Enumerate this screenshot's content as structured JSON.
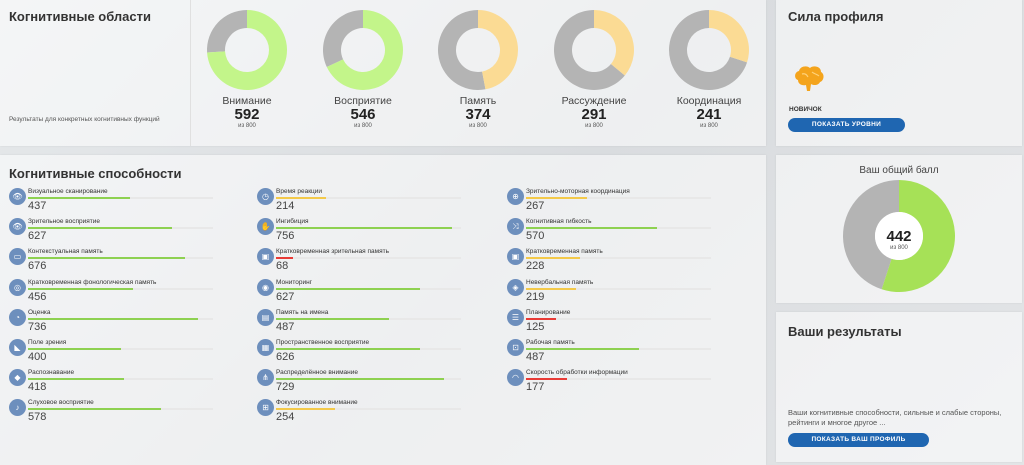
{
  "areas": {
    "title": "Когнитивные области",
    "description": "Результаты для конкретных когнитивных функций",
    "out_of": "из 800",
    "items": [
      {
        "name": "Внимание",
        "score": "592",
        "fraction": 0.74,
        "color": "#c3f58a"
      },
      {
        "name": "Восприятие",
        "score": "546",
        "fraction": 0.68,
        "color": "#c3f58a"
      },
      {
        "name": "Память",
        "score": "374",
        "fraction": 0.47,
        "color": "#fbdb94"
      },
      {
        "name": "Рассуждение",
        "score": "291",
        "fraction": 0.36,
        "color": "#fbdb94"
      },
      {
        "name": "Координация",
        "score": "241",
        "fraction": 0.3,
        "color": "#fbdb94"
      }
    ]
  },
  "profile": {
    "title": "Сила профиля",
    "level": "НОВИЧОК",
    "button": "ПОКАЗАТЬ УРОВНИ",
    "icon": "brain-icon",
    "brain_color": "#f4a41c"
  },
  "abilities": {
    "title": "Когнитивные способности",
    "colors": {
      "green": "#8ed151",
      "yellow": "#f3c94a",
      "red": "#e83b36"
    },
    "columns": [
      [
        {
          "name": "Визуальное сканирование",
          "value": "437",
          "fraction": 0.55,
          "color": "green",
          "icon": "eye-icon",
          "glyph": "👁"
        },
        {
          "name": "Зрительное восприятие",
          "value": "627",
          "fraction": 0.78,
          "color": "green",
          "icon": "eye-icon",
          "glyph": "👁"
        },
        {
          "name": "Контекстуальная память",
          "value": "676",
          "fraction": 0.85,
          "color": "green",
          "icon": "memory-card-icon",
          "glyph": "▭"
        },
        {
          "name": "Кратковременная фонологическая память",
          "value": "456",
          "fraction": 0.57,
          "color": "green",
          "icon": "ear-icon",
          "glyph": "◎"
        },
        {
          "name": "Оценка",
          "value": "736",
          "fraction": 0.92,
          "color": "green",
          "icon": "estimate-icon",
          "glyph": "◔"
        },
        {
          "name": "Поле зрения",
          "value": "400",
          "fraction": 0.5,
          "color": "green",
          "icon": "field-of-view-icon",
          "glyph": "◣"
        },
        {
          "name": "Распознавание",
          "value": "418",
          "fraction": 0.52,
          "color": "green",
          "icon": "recognition-icon",
          "glyph": "◆"
        },
        {
          "name": "Слуховое восприятие",
          "value": "578",
          "fraction": 0.72,
          "color": "green",
          "icon": "ear-icon",
          "glyph": "♪"
        }
      ],
      [
        {
          "name": "Время реакции",
          "value": "214",
          "fraction": 0.27,
          "color": "yellow",
          "icon": "stopwatch-icon",
          "glyph": "◷"
        },
        {
          "name": "Ингибиция",
          "value": "756",
          "fraction": 0.95,
          "color": "green",
          "icon": "hand-icon",
          "glyph": "✋"
        },
        {
          "name": "Кратковременная зрительная память",
          "value": "68",
          "fraction": 0.09,
          "color": "red",
          "icon": "memory-icon",
          "glyph": "▣"
        },
        {
          "name": "Мониторинг",
          "value": "627",
          "fraction": 0.78,
          "color": "green",
          "icon": "monitoring-icon",
          "glyph": "◉"
        },
        {
          "name": "Память на имена",
          "value": "487",
          "fraction": 0.61,
          "color": "green",
          "icon": "name-tag-icon",
          "glyph": "▤"
        },
        {
          "name": "Пространственное восприятие",
          "value": "626",
          "fraction": 0.78,
          "color": "green",
          "icon": "cube-icon",
          "glyph": "▦"
        },
        {
          "name": "Распределённое внимание",
          "value": "729",
          "fraction": 0.91,
          "color": "green",
          "icon": "split-icon",
          "glyph": "⋔"
        },
        {
          "name": "Фокусированное внимание",
          "value": "254",
          "fraction": 0.32,
          "color": "yellow",
          "icon": "focus-icon",
          "glyph": "⊞"
        }
      ],
      [
        {
          "name": "Зрительно-моторная координация",
          "value": "267",
          "fraction": 0.33,
          "color": "yellow",
          "icon": "hand-eye-icon",
          "glyph": "⊕"
        },
        {
          "name": "Когнитивная гибкость",
          "value": "570",
          "fraction": 0.71,
          "color": "green",
          "icon": "flexibility-icon",
          "glyph": "⤨"
        },
        {
          "name": "Кратковременная память",
          "value": "228",
          "fraction": 0.29,
          "color": "yellow",
          "icon": "memory-icon",
          "glyph": "▣"
        },
        {
          "name": "Невербальная память",
          "value": "219",
          "fraction": 0.27,
          "color": "yellow",
          "icon": "shapes-icon",
          "glyph": "◈"
        },
        {
          "name": "Планирование",
          "value": "125",
          "fraction": 0.16,
          "color": "red",
          "icon": "plan-icon",
          "glyph": "☰"
        },
        {
          "name": "Рабочая память",
          "value": "487",
          "fraction": 0.61,
          "color": "green",
          "icon": "working-memory-icon",
          "glyph": "⊡"
        },
        {
          "name": "Скорость обработки информации",
          "value": "177",
          "fraction": 0.22,
          "color": "red",
          "icon": "speedometer-icon",
          "glyph": "◠"
        }
      ]
    ]
  },
  "total": {
    "title": "Ваш общий балл",
    "score": "442",
    "out_of": "из 800",
    "fraction": 0.55,
    "color": "#a6e157"
  },
  "results": {
    "title": "Ваши результаты",
    "description": "Ваши когнитивные способности, сильные и слабые стороны, рейтинги и многое другое ...",
    "button": "ПОКАЗАТЬ ВАШ ПРОФИЛЬ"
  }
}
